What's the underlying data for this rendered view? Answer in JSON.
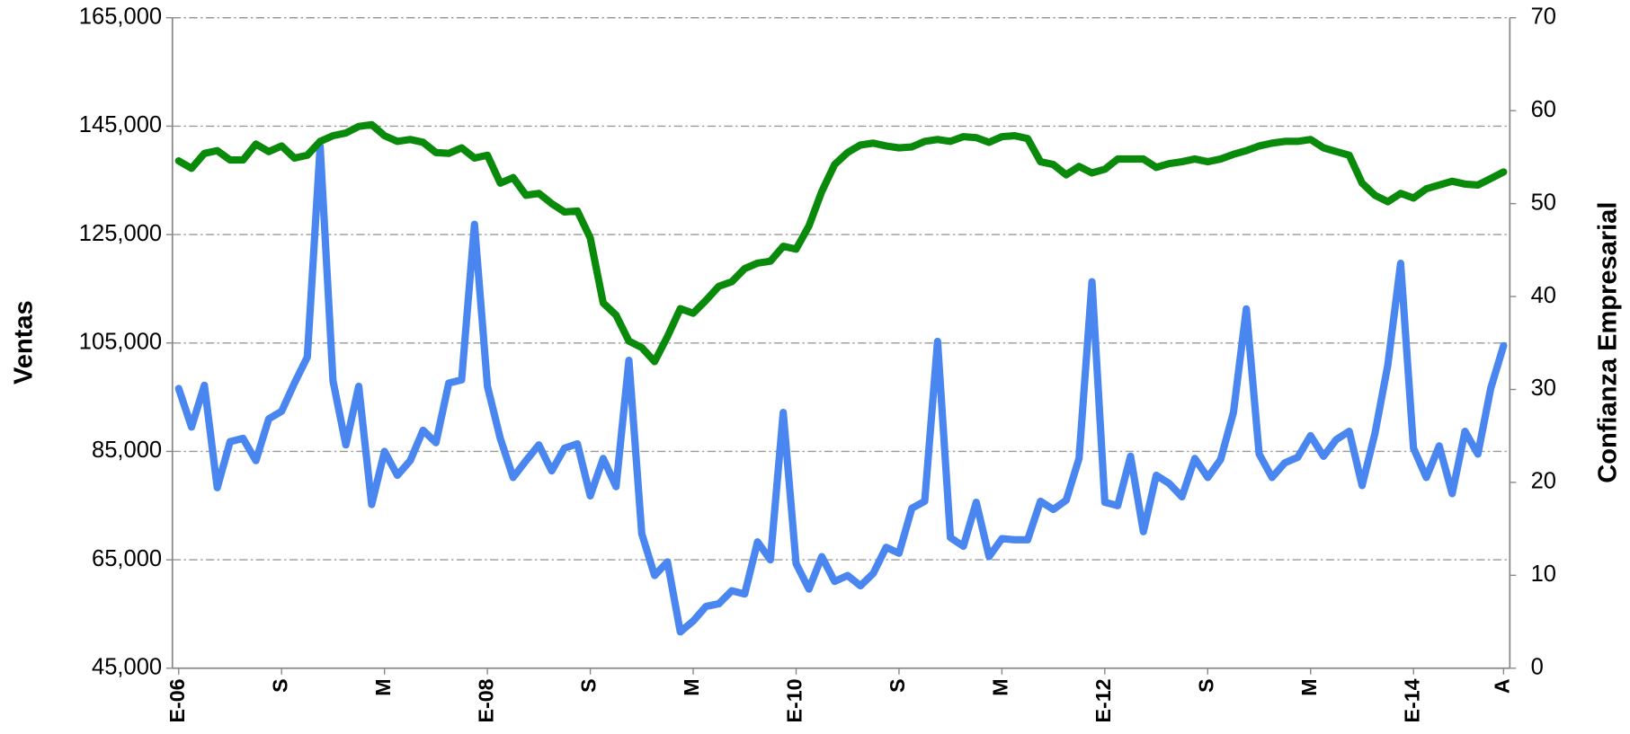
{
  "chart_data": {
    "type": "line",
    "ylabel": "Ventas",
    "y2label": "Confianza Empresarial",
    "categories": [
      "E-06",
      null,
      null,
      null,
      null,
      null,
      null,
      null,
      "S",
      null,
      null,
      null,
      null,
      null,
      null,
      null,
      "M",
      null,
      null,
      null,
      null,
      null,
      null,
      null,
      "E-08",
      null,
      null,
      null,
      null,
      null,
      null,
      null,
      "S",
      null,
      null,
      null,
      null,
      null,
      null,
      null,
      "M",
      null,
      null,
      null,
      null,
      null,
      null,
      null,
      "E-10",
      null,
      null,
      null,
      null,
      null,
      null,
      null,
      "S",
      null,
      null,
      null,
      null,
      null,
      null,
      null,
      "M",
      null,
      null,
      null,
      null,
      null,
      null,
      null,
      "E-12",
      null,
      null,
      null,
      null,
      null,
      null,
      null,
      "S",
      null,
      null,
      null,
      null,
      null,
      null,
      null,
      "M",
      null,
      null,
      null,
      null,
      null,
      null,
      null,
      "E-14",
      null,
      null,
      null,
      null,
      null,
      null,
      "A"
    ],
    "series": [
      {
        "color": "#4a86f0",
        "values": [
          96600,
          89500,
          97200,
          78300,
          86800,
          87400,
          83300,
          91000,
          92400,
          97600,
          102400,
          141300,
          98000,
          86200,
          97000,
          75200,
          85000,
          80600,
          83300,
          88900,
          86600,
          97600,
          98200,
          126900,
          97000,
          87400,
          80200,
          83300,
          86200,
          81400,
          85600,
          86400,
          76800,
          83700,
          78500,
          101800,
          69800,
          62100,
          64600,
          51700,
          53700,
          56400,
          56900,
          59300,
          58700,
          68300,
          65000,
          92200,
          64300,
          59600,
          65600,
          61000,
          62100,
          60200,
          62500,
          67300,
          66200,
          74500,
          75800,
          105300,
          69100,
          67500,
          75600,
          65600,
          68900,
          68700,
          68700,
          75800,
          74300,
          76000,
          83700,
          116300,
          75600,
          75000,
          84100,
          70200,
          80600,
          79100,
          76600,
          83700,
          80200,
          83500,
          92200,
          111300,
          84500,
          80200,
          82900,
          83900,
          87900,
          84100,
          87200,
          88700,
          78700,
          88300,
          100900,
          119700,
          85600,
          80200,
          86000,
          77200,
          88700,
          84500,
          96600,
          104500
        ]
      },
      {
        "color": "#0a8a0a",
        "axis": "y2",
        "values": [
          54.6,
          53.8,
          55.4,
          55.7,
          54.7,
          54.7,
          56.4,
          55.6,
          56.2,
          54.9,
          55.2,
          56.7,
          57.3,
          57.6,
          58.3,
          58.5,
          57.3,
          56.7,
          56.9,
          56.6,
          55.5,
          55.4,
          56.0,
          54.9,
          55.2,
          52.2,
          52.8,
          50.9,
          51.1,
          50.0,
          49.1,
          49.2,
          46.3,
          39.3,
          38.0,
          35.2,
          34.5,
          33.0,
          35.7,
          38.7,
          38.2,
          39.6,
          41.1,
          41.6,
          43.0,
          43.6,
          43.8,
          45.4,
          45.1,
          47.6,
          51.3,
          54.2,
          55.5,
          56.3,
          56.5,
          56.2,
          56.0,
          56.1,
          56.7,
          56.9,
          56.7,
          57.2,
          57.1,
          56.6,
          57.2,
          57.3,
          57.0,
          54.5,
          54.2,
          53.1,
          54.0,
          53.3,
          53.7,
          54.8,
          54.8,
          54.8,
          53.9,
          54.3,
          54.5,
          54.8,
          54.5,
          54.8,
          55.3,
          55.7,
          56.2,
          56.5,
          56.7,
          56.7,
          56.9,
          56.0,
          55.6,
          55.2,
          52.2,
          50.9,
          50.2,
          51.1,
          50.6,
          51.6,
          52.0,
          52.4,
          52.1,
          52.0,
          52.7,
          53.4
        ]
      }
    ],
    "ylim": [
      45000,
      165000
    ],
    "yticks": [
      {
        "value": 45000,
        "label": "45,000"
      },
      {
        "value": 65000,
        "label": "65,000"
      },
      {
        "value": 85000,
        "label": "85,000"
      },
      {
        "value": 105000,
        "label": "105,000"
      },
      {
        "value": 125000,
        "label": "125,000"
      },
      {
        "value": 145000,
        "label": "145,000"
      },
      {
        "value": 165000,
        "label": "165,000"
      }
    ],
    "y2lim": [
      0,
      70
    ],
    "y2ticks": [
      0,
      10,
      20,
      30,
      40,
      50,
      60,
      70
    ],
    "grid": true
  }
}
